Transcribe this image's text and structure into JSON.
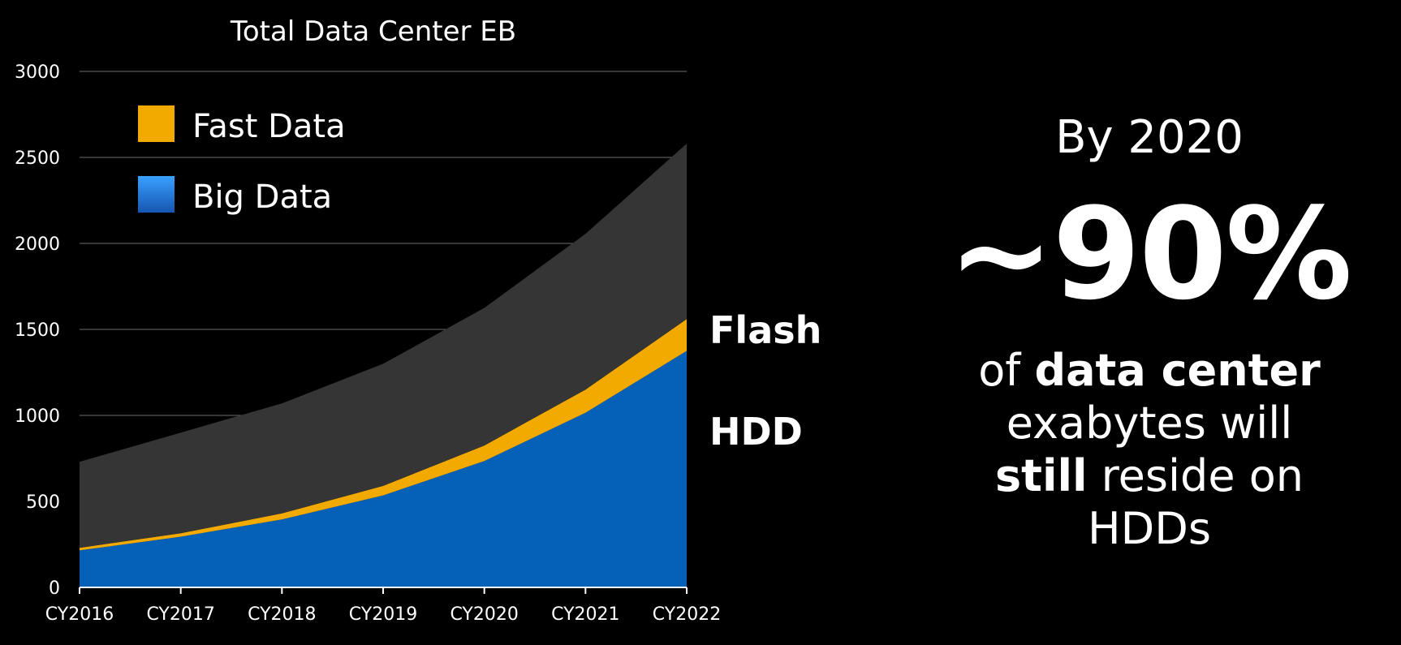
{
  "chart_data": {
    "type": "area",
    "stacked": true,
    "title": "Total Data Center EB",
    "xlabel": "",
    "ylabel": "",
    "categories": [
      "CY2016",
      "CY2017",
      "CY2018",
      "CY2019",
      "CY2020",
      "CY2021",
      "CY2022"
    ],
    "ylim": [
      0,
      3000
    ],
    "yticks": [
      0,
      500,
      1000,
      1500,
      2000,
      2500,
      3000
    ],
    "grid": true,
    "legend_position": "top-left",
    "series": [
      {
        "name": "Big Data",
        "color": "#0560b8",
        "values": [
          215,
          295,
          395,
          535,
          735,
          1015,
          1375
        ]
      },
      {
        "name": "Fast Data",
        "color": "#f2a900",
        "values": [
          15,
          20,
          35,
          55,
          90,
          135,
          185
        ]
      },
      {
        "name": "",
        "color": "#353535",
        "values": [
          500,
          585,
          640,
          710,
          800,
          905,
          1020
        ]
      }
    ],
    "annotations": [
      "Flash",
      "HDD"
    ]
  },
  "callout": {
    "lead": "By 2020",
    "big": "~90%",
    "body_parts": {
      "p1": "of ",
      "p2": "data center",
      "p3": "exabytes will",
      "p4": "still",
      "p5": " reside on",
      "p6": "HDDs"
    }
  },
  "colors": {
    "background": "#000000",
    "grid": "#6e6e6e",
    "text": "#ffffff"
  }
}
